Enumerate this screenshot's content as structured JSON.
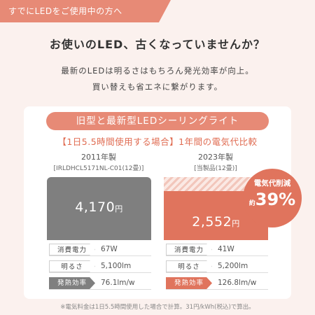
{
  "banner": "すでにLEDをご使用中の方へ",
  "headline": "お使いのLED、古くなっていませんか？",
  "sub1": "最新のLEDは明るさはもちろん発光効率が向上。",
  "sub2": "買い替えも省エネに繋がります。",
  "card": {
    "title": "旧型と最新型LEDシーリングライト",
    "compare_title": "【1日5.5時間使用する場合】1年間の電気代比較"
  },
  "old": {
    "year": "2011年製",
    "model": "[IRLDHCL5171NL-C01(12畳)]",
    "cost": "4,170",
    "unit": "円",
    "specs": [
      {
        "label": "消費電力",
        "value": "67W"
      },
      {
        "label": "明るさ",
        "value": "5,100lm"
      },
      {
        "label": "発熱効率",
        "value": "76.1lm/w"
      }
    ]
  },
  "new": {
    "year": "2023年製",
    "model": "[当製品(12畳)]",
    "cost": "2,552",
    "unit": "円",
    "specs": [
      {
        "label": "消費電力",
        "value": "41W"
      },
      {
        "label": "明るさ",
        "value": "5,200lm"
      },
      {
        "label": "発熱効率",
        "value": "126.8lm/w"
      }
    ]
  },
  "badge": {
    "label": "電気代削減",
    "approx": "約",
    "percent": "39%"
  },
  "footnote": "※電気料金は1日5.5時間使用した場合で計算。31円/kWh(税込)で算出。",
  "colors": {
    "accent": "#e0745d",
    "banner": "#e78a76",
    "old_bar": "#7f7f7f",
    "background": "#fbf1ee"
  }
}
